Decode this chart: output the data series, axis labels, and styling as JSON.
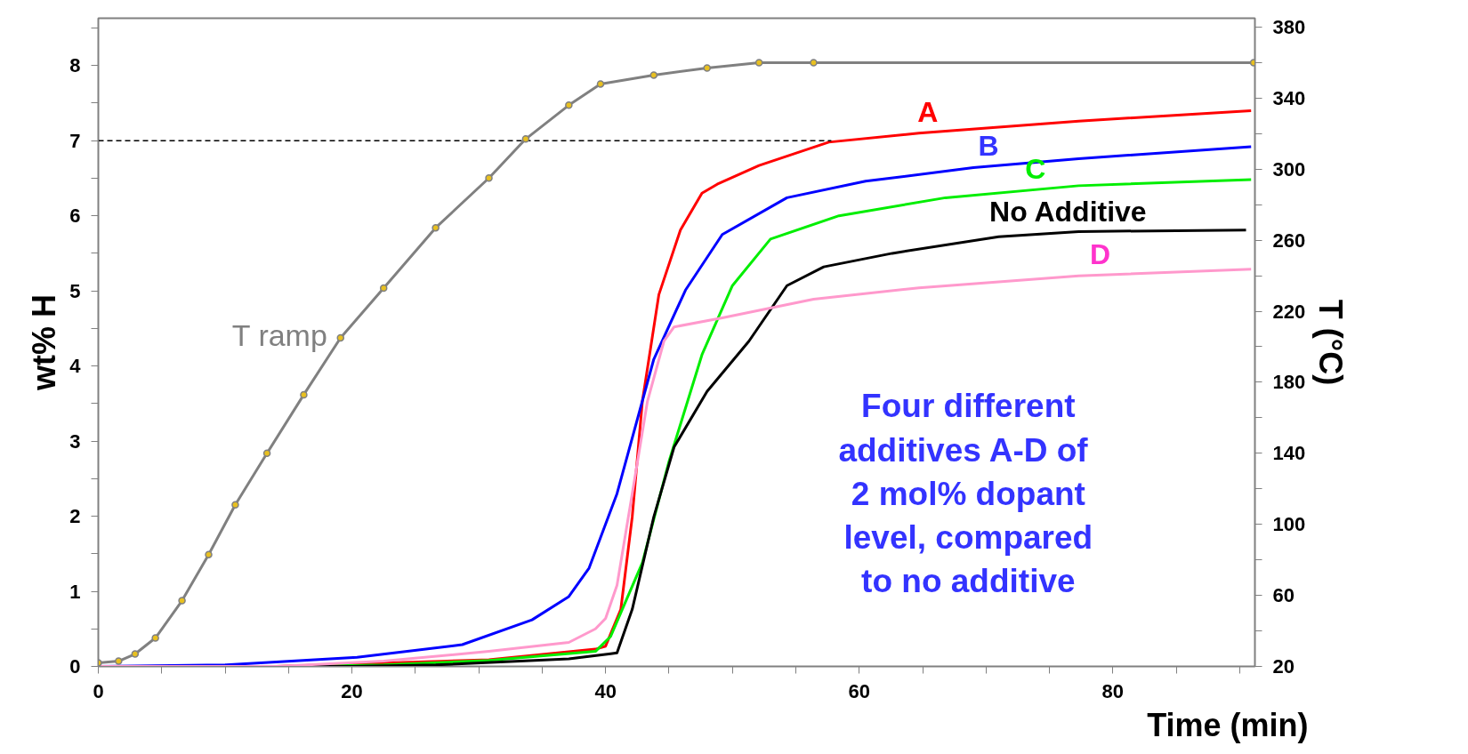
{
  "chart_data": {
    "type": "line",
    "xlabel": "Time (min)",
    "ylabel": "wt% H",
    "y2label": "T (°C)",
    "xlim": [
      0,
      91.2
    ],
    "ylim": [
      0,
      8.63
    ],
    "y2lim": [
      20,
      385
    ],
    "xticks": [
      0,
      {
        "value": 5,
        "label": null
      },
      {
        "value": 10,
        "label": null
      },
      {
        "value": 15,
        "label": null
      },
      20,
      {
        "value": 25,
        "label": null
      },
      {
        "value": 30,
        "label": null
      },
      {
        "value": 35,
        "label": null
      },
      40,
      {
        "value": 45,
        "label": null
      },
      {
        "value": 50,
        "label": null
      },
      {
        "value": 55,
        "label": null
      },
      60,
      {
        "value": 65,
        "label": null
      },
      {
        "value": 70,
        "label": null
      },
      {
        "value": 75,
        "label": null
      },
      80,
      {
        "value": 85,
        "label": null
      },
      {
        "value": 90,
        "label": null
      }
    ],
    "yticks": [
      0,
      {
        "value": 0.5,
        "label": null
      },
      1,
      {
        "value": 1.5,
        "label": null
      },
      2,
      {
        "value": 2.5,
        "label": null
      },
      3,
      {
        "value": 3.5,
        "label": null
      },
      4,
      {
        "value": 4.5,
        "label": null
      },
      5,
      {
        "value": 5.5,
        "label": null
      },
      6,
      {
        "value": 6.5,
        "label": null
      },
      7,
      {
        "value": 7.5,
        "label": null
      },
      8,
      {
        "value": 8.5,
        "label": null
      }
    ],
    "y2ticks": [
      20,
      {
        "value": 40,
        "label": null
      },
      60,
      {
        "value": 80,
        "label": null
      },
      100,
      {
        "value": 120,
        "label": null
      },
      140,
      {
        "value": 160,
        "label": null
      },
      180,
      {
        "value": 200,
        "label": null
      },
      220,
      {
        "value": 240,
        "label": null
      },
      260,
      {
        "value": 280,
        "label": null
      },
      300,
      {
        "value": 320,
        "label": null
      },
      340,
      {
        "value": 360,
        "label": null
      },
      380
    ],
    "grid": false,
    "series": [
      {
        "name": "A",
        "color": "#ff0000",
        "x": [
          0,
          14,
          30.8,
          39.2,
          40,
          41.2,
          42.1,
          42.9,
          44.2,
          45.9,
          47.6,
          48.8,
          52.1,
          57.6,
          64.7,
          77.3,
          90.9
        ],
        "values": [
          0,
          0,
          0.09,
          0.23,
          0.27,
          0.76,
          1.99,
          3.53,
          4.95,
          5.81,
          6.3,
          6.42,
          6.67,
          6.98,
          7.1,
          7.26,
          7.4
        ]
      },
      {
        "name": "B",
        "color": "#0000ff",
        "x": [
          0,
          10,
          20.4,
          28.7,
          34.2,
          37.1,
          38.7,
          40.9,
          43.8,
          46.3,
          49.2,
          54.3,
          60.5,
          69,
          77.3,
          90.9
        ],
        "values": [
          0,
          0.02,
          0.12,
          0.29,
          0.62,
          0.93,
          1.31,
          2.3,
          4.09,
          5.01,
          5.75,
          6.24,
          6.46,
          6.64,
          6.76,
          6.92
        ]
      },
      {
        "name": "C",
        "color": "#00ee00",
        "x": [
          0,
          16,
          22.5,
          30.8,
          39.2,
          40.4,
          42.9,
          45,
          47.6,
          50,
          53,
          58.4,
          66.8,
          77.3,
          90.9
        ],
        "values": [
          0,
          0,
          0.02,
          0.08,
          0.2,
          0.4,
          1.38,
          2.73,
          4.15,
          5.07,
          5.69,
          6.0,
          6.24,
          6.4,
          6.48
        ]
      },
      {
        "name": "No Additive",
        "color": "#000000",
        "x": [
          0,
          20,
          26.6,
          37.1,
          40.4,
          40.9,
          42.1,
          43.8,
          45.4,
          48,
          51.3,
          54.3,
          57.2,
          62.6,
          71,
          77.3,
          90.5
        ],
        "values": [
          0,
          0,
          0.02,
          0.1,
          0.17,
          0.18,
          0.76,
          1.99,
          2.92,
          3.66,
          4.33,
          5.07,
          5.32,
          5.5,
          5.72,
          5.79,
          5.81
        ]
      },
      {
        "name": "D",
        "color": "#ff99cc",
        "x": [
          0,
          14,
          22.5,
          30.8,
          37.1,
          39.2,
          40,
          40.9,
          42.1,
          43.3,
          44.6,
          45.4,
          49.2,
          56.4,
          64.7,
          77.3,
          90.9
        ],
        "values": [
          0,
          0,
          0.07,
          0.2,
          0.32,
          0.5,
          0.64,
          1.08,
          2.3,
          3.53,
          4.33,
          4.52,
          4.64,
          4.89,
          5.04,
          5.2,
          5.29
        ]
      },
      {
        "color": "#000000",
        "line_style": "dashed",
        "x": [
          0,
          57.8
        ],
        "values": [
          7,
          7
        ]
      },
      {
        "name": "T ramp",
        "color": "#808080",
        "axis": "y2",
        "marker": "circle",
        "x": [
          0,
          1.6,
          2.9,
          4.5,
          6.6,
          8.7,
          10.8,
          13.3,
          16.2,
          19.1,
          22.5,
          26.6,
          30.8,
          33.7,
          37.1,
          39.6,
          43.8,
          48,
          52.1,
          56.4,
          91.1
        ],
        "values": [
          22,
          23,
          27,
          36,
          57,
          83,
          111,
          140,
          173,
          205,
          233,
          267,
          295,
          317,
          336,
          348,
          353,
          357,
          360,
          360,
          360
        ]
      }
    ],
    "annotations": [
      "Four different\nadditives  A-D of\n2 mol% dopant\nlevel, compared\nto no additive"
    ]
  }
}
